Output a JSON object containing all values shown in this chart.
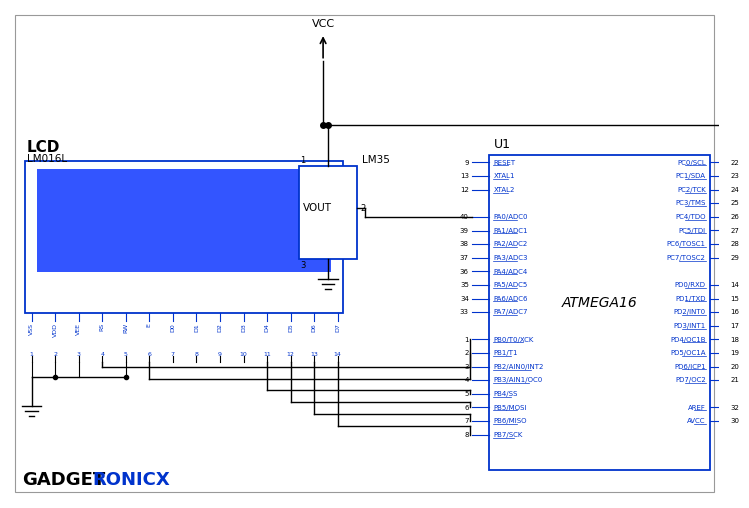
{
  "bg_color": "#ffffff",
  "blue": "#0033cc",
  "black": "#000000",
  "gray_border": "#999999",
  "lcd_screen": "#3355ff",
  "u1_name": "ATMEGA16",
  "vcc_label": "VCC",
  "lcd_label": "LCD",
  "lcd_model": "LM016L",
  "lm35_label": "LM35",
  "lm35_vout": "VOUT",
  "u1_label": "U1",
  "lcd_pins": [
    "VSS",
    "VDD",
    "VEE",
    "RS",
    "RW",
    "E",
    "D0",
    "D1",
    "D2",
    "D3",
    "D4",
    "D5",
    "D6",
    "D7"
  ],
  "left_pins": [
    [
      "RESET",
      9
    ],
    [
      "XTAL1",
      13
    ],
    [
      "XTAL2",
      12
    ],
    [
      "PA0/ADC0",
      40
    ],
    [
      "PA1/ADC1",
      39
    ],
    [
      "PA2/ADC2",
      38
    ],
    [
      "PA3/ADC3",
      37
    ],
    [
      "PA4/ADC4",
      36
    ],
    [
      "PA5/ADC5",
      35
    ],
    [
      "PA6/ADC6",
      34
    ],
    [
      "PA7/ADC7",
      33
    ],
    [
      "PB0/T0/XCK",
      1
    ],
    [
      "PB1/T1",
      2
    ],
    [
      "PB2/AIN0/INT2",
      3
    ],
    [
      "PB3/AIN1/OC0",
      4
    ],
    [
      "PB4/SS",
      5
    ],
    [
      "PB5/MOSI",
      6
    ],
    [
      "PB6/MISO",
      7
    ],
    [
      "PB7/SCK",
      8
    ]
  ],
  "right_pins": [
    [
      "PC0/SCL",
      22
    ],
    [
      "PC1/SDA",
      23
    ],
    [
      "PC2/TCK",
      24
    ],
    [
      "PC3/TMS",
      25
    ],
    [
      "PC4/TDO",
      26
    ],
    [
      "PC5/TDI",
      27
    ],
    [
      "PC6/TOSC1",
      28
    ],
    [
      "PC7/TOSC2",
      29
    ],
    [
      "PD0/RXD",
      14
    ],
    [
      "PD1/TXD",
      15
    ],
    [
      "PD2/INT0",
      16
    ],
    [
      "PD3/INT1",
      17
    ],
    [
      "PD4/OC1B",
      18
    ],
    [
      "PD5/OC1A",
      19
    ],
    [
      "PD6/ICP1",
      20
    ],
    [
      "PD7/OC2",
      21
    ],
    [
      "AREF",
      32
    ],
    [
      "AVCC",
      30
    ]
  ]
}
